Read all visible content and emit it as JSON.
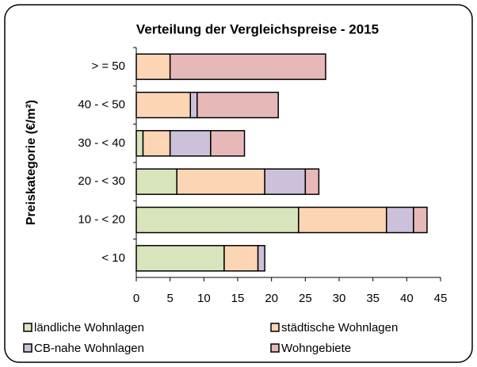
{
  "chart_data": {
    "type": "bar",
    "orientation": "horizontal",
    "stacked": true,
    "title": "Verteilung der Vergleichspreise  - 2015",
    "y_label": "Preiskategorie (€/m²)",
    "categories": [
      "> = 50",
      "40 - < 50",
      "30 - < 40",
      "20 - < 30",
      "10 - < 20",
      "< 10"
    ],
    "series": [
      {
        "name": "ländliche Wohnlagen",
        "color": "#d8e4bc",
        "values": [
          0,
          0,
          1,
          6,
          24,
          13
        ]
      },
      {
        "name": "städtische Wohnlagen",
        "color": "#fcd5b4",
        "values": [
          5,
          8,
          4,
          13,
          13,
          5
        ]
      },
      {
        "name": "CB-nahe Wohnlagen",
        "color": "#ccc0da",
        "values": [
          0,
          1,
          6,
          6,
          4,
          1
        ]
      },
      {
        "name": "Wohngebiete",
        "color": "#e6b9b8",
        "values": [
          23,
          12,
          5,
          2,
          2,
          0
        ]
      }
    ],
    "xlim": [
      0,
      45
    ],
    "xticks": [
      0,
      5,
      10,
      15,
      20,
      25,
      30,
      35,
      40,
      45
    ],
    "grid": false,
    "legend": "bottom"
  }
}
